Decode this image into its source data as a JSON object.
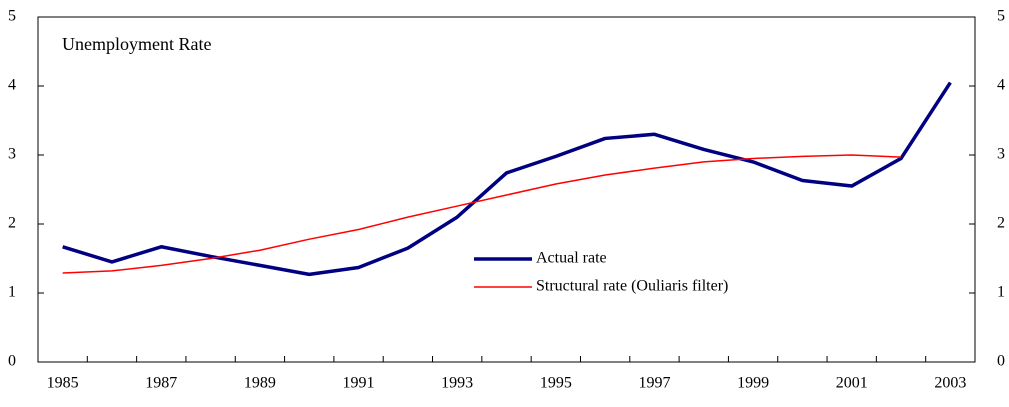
{
  "chart_data": {
    "type": "line",
    "title": "Unemployment Rate",
    "categories": [
      "1985",
      null,
      "1987",
      null,
      "1989",
      null,
      "1991",
      null,
      "1993",
      null,
      "1995",
      null,
      "1997",
      null,
      "1999",
      null,
      "2001",
      null,
      "2003"
    ],
    "series": [
      {
        "name": "Actual rate",
        "color": "#000080",
        "values": [
          1.67,
          1.45,
          1.67,
          1.53,
          1.4,
          1.27,
          1.37,
          1.65,
          2.1,
          2.74,
          2.98,
          3.24,
          3.3,
          3.08,
          2.9,
          2.63,
          2.55,
          2.95,
          4.05
        ]
      },
      {
        "name": "Structural rate (Ouliaris filter)",
        "color": "#ff0000",
        "values": [
          1.29,
          1.32,
          1.4,
          1.5,
          1.62,
          1.78,
          1.92,
          2.1,
          2.26,
          2.42,
          2.58,
          2.71,
          2.81,
          2.9,
          2.95,
          2.98,
          3.0,
          2.97,
          null
        ]
      }
    ],
    "ylim": [
      0,
      5
    ],
    "yticks": [
      0,
      1,
      2,
      3,
      4,
      5
    ],
    "y2lim": [
      0,
      5
    ],
    "y2ticks": [
      0,
      1,
      2,
      3,
      4,
      5
    ],
    "grid": false
  }
}
